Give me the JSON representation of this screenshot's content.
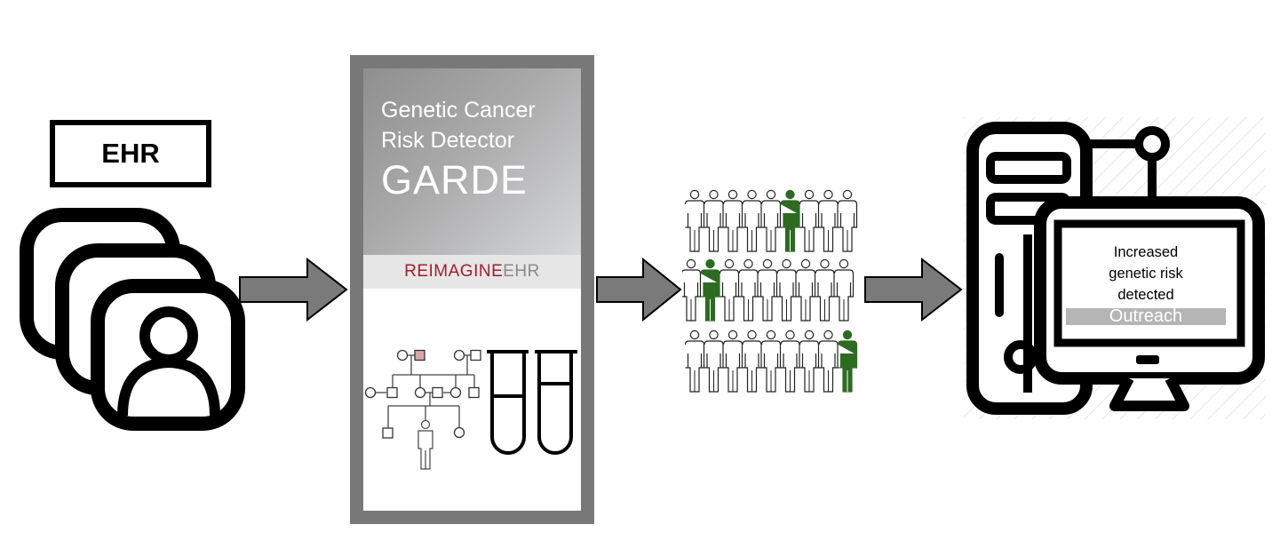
{
  "ehr": {
    "label": "EHR"
  },
  "garde": {
    "title_line1": "Genetic Cancer",
    "title_line2": "Risk Detector",
    "title_line3": "GARDE",
    "brand_strong": "REIMAGINE",
    "brand_light": "EHR"
  },
  "population": {
    "rows": [
      {
        "count": 9,
        "highlighted_index": 5
      },
      {
        "count": 9,
        "highlighted_index": 1
      },
      {
        "count": 9,
        "highlighted_index": 8
      }
    ],
    "normal_color": "#ffffff",
    "highlight_color": "#2e6b22"
  },
  "screen": {
    "message_line1": "Increased",
    "message_line2": "genetic risk",
    "message_line3": "detected",
    "button_label": "Outreach"
  },
  "colors": {
    "arrow_fill": "#7a7a7a",
    "panel_border": "#787878",
    "pedigree_highlight": "#d8a8a8"
  },
  "icons": [
    "patient-records-icon",
    "flow-arrow-icon",
    "pedigree-icon",
    "test-tube-icon",
    "person-icon",
    "computer-icon"
  ]
}
